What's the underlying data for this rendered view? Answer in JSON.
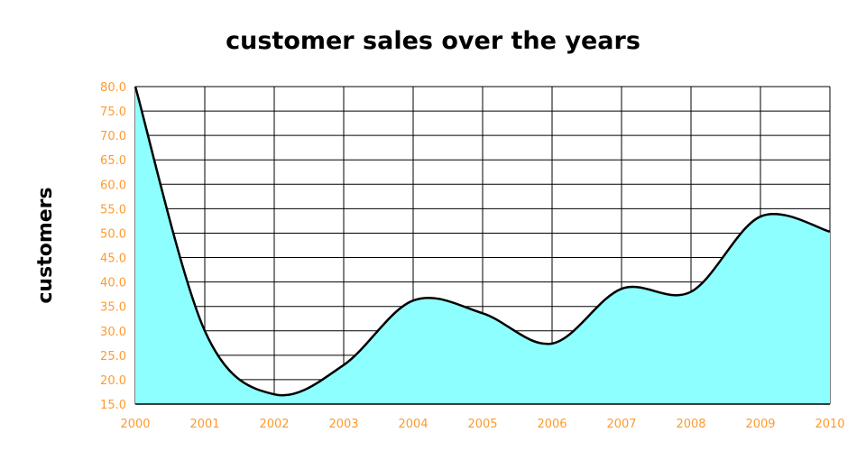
{
  "chart_data": {
    "type": "area",
    "title": "customer sales over the years",
    "xlabel": "",
    "ylabel": "customers",
    "x": [
      2000,
      2001,
      2002,
      2003,
      2004,
      2005,
      2006,
      2007,
      2008,
      2009,
      2010
    ],
    "xtick_labels": [
      "2000",
      "2001",
      "2002",
      "2003",
      "2004",
      "2005",
      "2006",
      "2007",
      "2008",
      "2009",
      "2010"
    ],
    "series": [
      {
        "name": "customers",
        "values": [
          80,
          30,
          17,
          23,
          36.2,
          33.6,
          27.4,
          38.6,
          38,
          53.4,
          50.3
        ]
      }
    ],
    "ylim": [
      15,
      80
    ],
    "ytick_labels": [
      "15.0",
      "20.0",
      "25.0",
      "30.0",
      "35.0",
      "40.0",
      "45.0",
      "50.0",
      "55.0",
      "60.0",
      "65.0",
      "70.0",
      "75.0",
      "80.0"
    ],
    "grid": true,
    "colors": {
      "fill": "#8effff",
      "line": "#000000",
      "tick": "#ff9a2e"
    }
  }
}
